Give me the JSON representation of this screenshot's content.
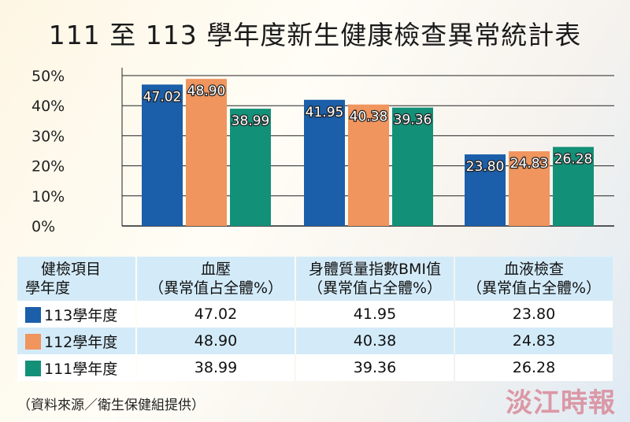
{
  "title": "111 至 113 學年度新生健康檢查異常統計表",
  "chart_data": {
    "type": "bar",
    "title": "111 至 113 學年度新生健康檢查異常統計表",
    "categories": [
      "血壓",
      "身體質量指數BMI值",
      "血液檢查"
    ],
    "series": [
      {
        "name": "113學年度",
        "color": "#1b5ea9",
        "values": [
          47.02,
          41.95,
          23.8
        ]
      },
      {
        "name": "112學年度",
        "color": "#f0955e",
        "values": [
          48.9,
          40.38,
          24.83
        ]
      },
      {
        "name": "111學年度",
        "color": "#139078",
        "values": [
          38.99,
          39.36,
          26.28
        ]
      }
    ],
    "ylim": [
      0,
      50
    ],
    "yticks": [
      "0%",
      "10%",
      "20%",
      "30%",
      "40%",
      "50%"
    ],
    "grid": true,
    "data_labels": [
      [
        "47.02",
        "41.95",
        "23.80"
      ],
      [
        "48.90",
        "40.38",
        "24.83"
      ],
      [
        "38.99",
        "39.36",
        "26.28"
      ]
    ]
  },
  "table": {
    "corner_top": "健檢項目",
    "corner_bottom": "學年度",
    "headers": [
      {
        "l1": "血壓",
        "l2": "（異常值占全體%）"
      },
      {
        "l1": "身體質量指數BMI值",
        "l2": "（異常值占全體%）"
      },
      {
        "l1": "血液檢查",
        "l2": "（異常值占全體%）"
      }
    ],
    "rows": [
      {
        "label": "113學年度",
        "cells": [
          "47.02",
          "41.95",
          "23.80"
        ]
      },
      {
        "label": "112學年度",
        "cells": [
          "48.90",
          "40.38",
          "24.83"
        ]
      },
      {
        "label": "111學年度",
        "cells": [
          "38.99",
          "39.36",
          "26.28"
        ]
      }
    ]
  },
  "source": "（資料來源／衛生保健組提供）",
  "logo": "淡江時報"
}
